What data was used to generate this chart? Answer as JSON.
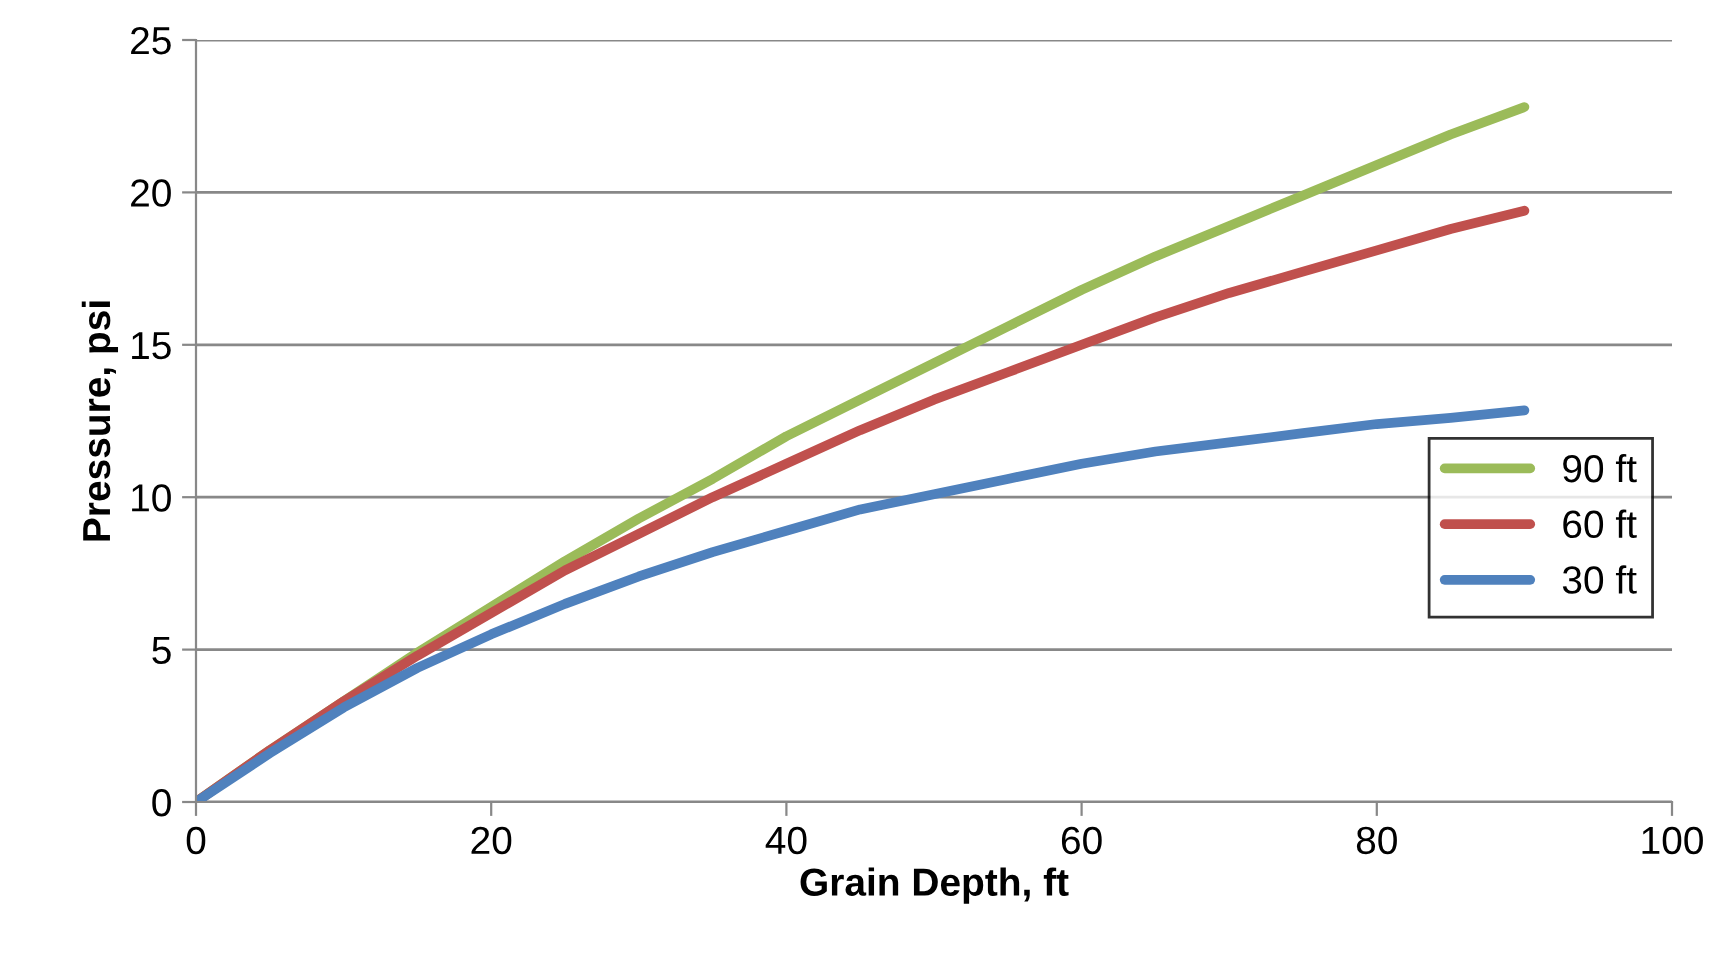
{
  "chart_data": {
    "type": "line",
    "xlabel": "Grain Depth, ft",
    "ylabel": "Pressure, psi",
    "x": [
      0,
      5,
      10,
      15,
      20,
      25,
      30,
      35,
      40,
      45,
      50,
      55,
      60,
      65,
      70,
      75,
      80,
      85,
      90
    ],
    "series": [
      {
        "name": "90 ft",
        "color": "#9bbb59",
        "values": [
          0,
          1.7,
          3.3,
          4.9,
          6.4,
          7.9,
          9.3,
          10.6,
          12.0,
          13.2,
          14.4,
          15.6,
          16.8,
          17.9,
          18.9,
          19.9,
          20.9,
          21.9,
          22.8
        ]
      },
      {
        "name": "60 ft",
        "color": "#c0504d",
        "values": [
          0,
          1.7,
          3.3,
          4.8,
          6.2,
          7.6,
          8.8,
          10.0,
          11.1,
          12.2,
          13.2,
          14.1,
          15.0,
          15.9,
          16.7,
          17.4,
          18.1,
          18.8,
          19.4
        ]
      },
      {
        "name": "30 ft",
        "color": "#4f81bd",
        "values": [
          0,
          1.6,
          3.1,
          4.4,
          5.5,
          6.5,
          7.4,
          8.2,
          8.9,
          9.6,
          10.1,
          10.6,
          11.1,
          11.5,
          11.8,
          12.1,
          12.4,
          12.6,
          12.85
        ]
      }
    ],
    "xlim": [
      0,
      100
    ],
    "xticks": [
      0,
      20,
      40,
      60,
      80,
      100
    ],
    "ylim": [
      0,
      25
    ],
    "yticks": [
      0,
      5,
      10,
      15,
      20,
      25
    ],
    "grid": "y",
    "legend": "right",
    "marker": "none",
    "line_style": "solid"
  }
}
